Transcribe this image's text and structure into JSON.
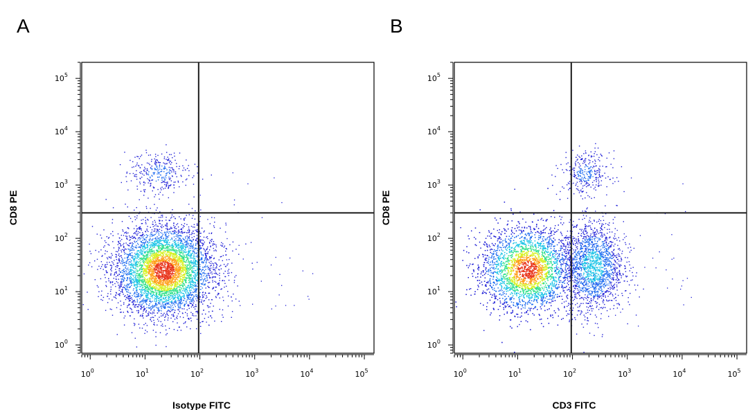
{
  "chart_data": [
    {
      "panel_label": "A",
      "type": "scatter",
      "subtype": "flow-cytometry-density-dot-plot",
      "xlabel": "Isotype FITC",
      "ylabel": "CD8 PE",
      "x_scale": "log",
      "y_scale": "log",
      "xlim": [
        0.7,
        150000
      ],
      "ylim": [
        0.7,
        200000
      ],
      "x_tick_values": [
        1,
        10,
        100,
        1000,
        10000,
        100000
      ],
      "x_tick_labels": [
        "10^0",
        "10^1",
        "10^2",
        "10^3",
        "10^4",
        "10^5"
      ],
      "y_tick_values": [
        1,
        10,
        100,
        1000,
        10000,
        100000
      ],
      "y_tick_labels": [
        "10^0",
        "10^1",
        "10^2",
        "10^3",
        "10^4",
        "10^5"
      ],
      "quadrant_gate": {
        "x": 95,
        "y": 300
      },
      "populations": [
        {
          "center_x": 22,
          "center_y": 25,
          "spread_x_decades": 0.45,
          "spread_y_decades": 0.42,
          "relative_density": 1.0,
          "color_peak": "red"
        },
        {
          "center_x": 18,
          "center_y": 1700,
          "spread_x_decades": 0.28,
          "spread_y_decades": 0.2,
          "relative_density": 0.06,
          "color_peak": "blue"
        }
      ],
      "grid": false,
      "legend": "none"
    },
    {
      "panel_label": "B",
      "type": "scatter",
      "subtype": "flow-cytometry-density-dot-plot",
      "xlabel": "CD3 FITC",
      "ylabel": "CD8 PE",
      "x_scale": "log",
      "y_scale": "log",
      "xlim": [
        0.7,
        150000
      ],
      "ylim": [
        0.7,
        200000
      ],
      "x_tick_values": [
        1,
        10,
        100,
        1000,
        10000,
        100000
      ],
      "x_tick_labels": [
        "10^0",
        "10^1",
        "10^2",
        "10^3",
        "10^4",
        "10^5"
      ],
      "y_tick_values": [
        1,
        10,
        100,
        1000,
        10000,
        100000
      ],
      "y_tick_labels": [
        "10^0",
        "10^1",
        "10^2",
        "10^3",
        "10^4",
        "10^5"
      ],
      "quadrant_gate": {
        "x": 95,
        "y": 300
      },
      "populations": [
        {
          "center_x": 15,
          "center_y": 26,
          "spread_x_decades": 0.42,
          "spread_y_decades": 0.4,
          "relative_density": 1.0,
          "color_peak": "red"
        },
        {
          "center_x": 230,
          "center_y": 30,
          "spread_x_decades": 0.28,
          "spread_y_decades": 0.42,
          "relative_density": 0.35,
          "color_peak": "cyan"
        },
        {
          "center_x": 170,
          "center_y": 1700,
          "spread_x_decades": 0.22,
          "spread_y_decades": 0.2,
          "relative_density": 0.06,
          "color_peak": "blue"
        }
      ],
      "grid": false,
      "legend": "none"
    }
  ],
  "colors": {
    "axis": "#000000",
    "gate_line": "#1a1a1a",
    "density_scale": [
      "#1d1dd6",
      "#1e6cf0",
      "#17c3e6",
      "#2ee08a",
      "#d6f01e",
      "#ffa01a",
      "#e8341a"
    ]
  }
}
